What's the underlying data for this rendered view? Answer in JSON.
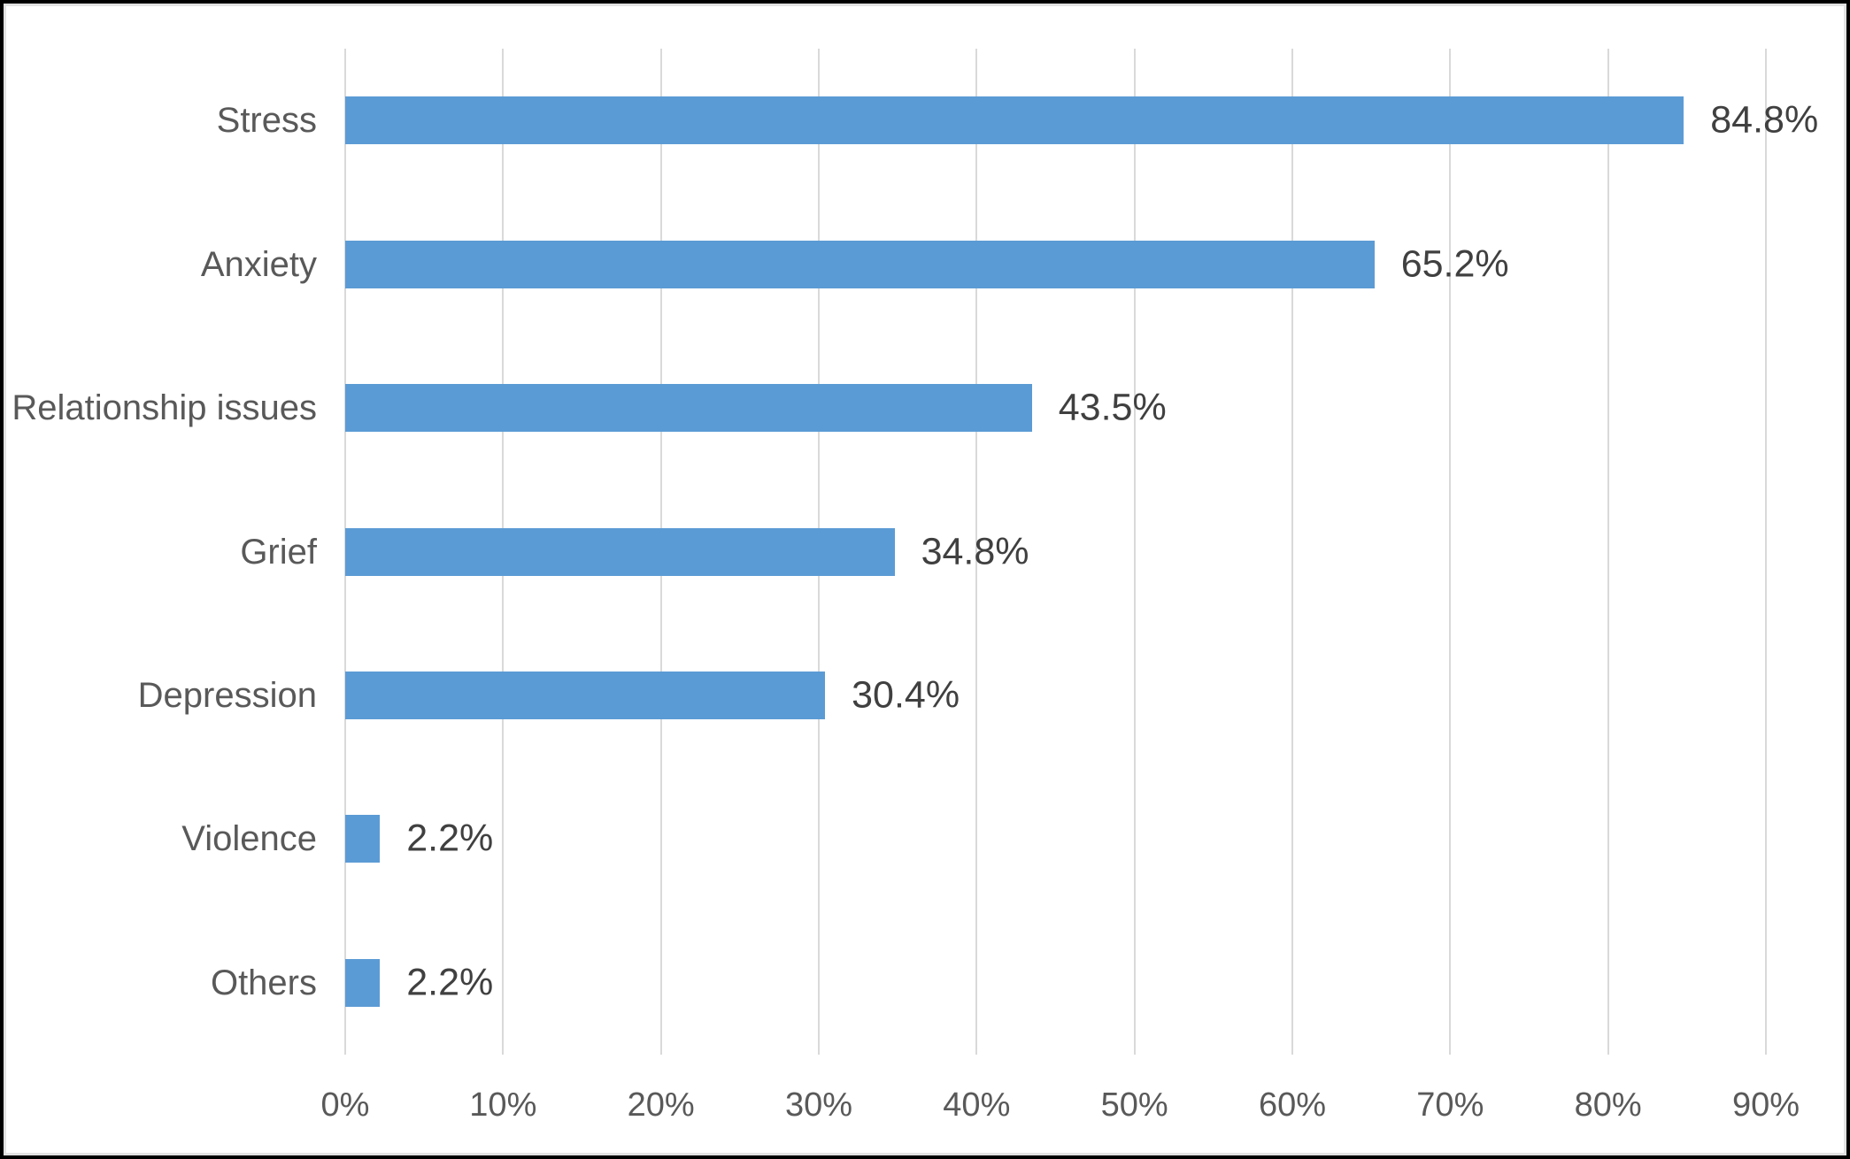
{
  "chart_data": {
    "type": "bar",
    "orientation": "horizontal",
    "title": "",
    "xlabel": "",
    "ylabel": "",
    "categories": [
      "Stress",
      "Anxiety",
      "Relationship issues",
      "Grief",
      "Depression",
      "Violence",
      "Others"
    ],
    "values": [
      84.8,
      65.2,
      43.5,
      34.8,
      30.4,
      2.2,
      2.2
    ],
    "value_labels": [
      "84.8%",
      "65.2%",
      "43.5%",
      "34.8%",
      "30.4%",
      "2.2%",
      "2.2%"
    ],
    "x_ticks": [
      0,
      10,
      20,
      30,
      40,
      50,
      60,
      70,
      80,
      90
    ],
    "x_tick_labels": [
      "0%",
      "10%",
      "20%",
      "30%",
      "40%",
      "50%",
      "60%",
      "70%",
      "80%",
      "90%"
    ],
    "xlim": [
      0,
      90
    ],
    "grid": "vertical-only",
    "legend": false,
    "colors": {
      "bar": "#5B9BD5",
      "gridline": "#d9d9d9",
      "axis_text": "#595959",
      "value_text": "#404040",
      "frame_border": "#000000",
      "background": "#ffffff"
    }
  }
}
